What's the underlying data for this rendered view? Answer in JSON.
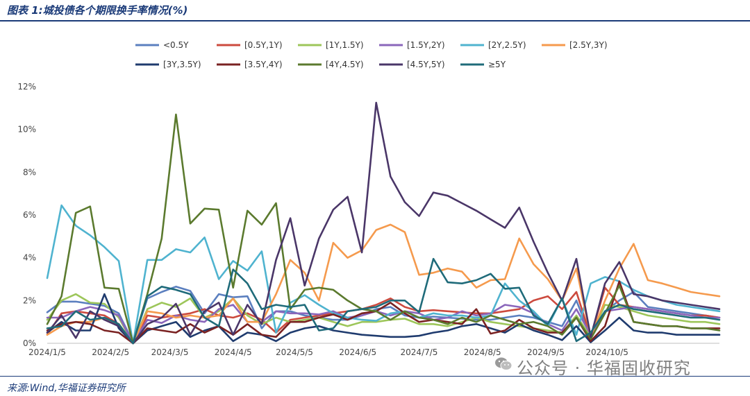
{
  "header": {
    "title": "图表 1:城投债各个期限换手率情况(%)"
  },
  "footer": {
    "source": "来源:Wind,华福证券研究所"
  },
  "watermark": {
    "text": "公众号 · 华福固收研究",
    "icon": "wechat-icon"
  },
  "chart_data": {
    "type": "line",
    "title": "",
    "xlabel": "",
    "ylabel": "",
    "ylim": [
      0,
      12
    ],
    "y_ticks": [
      0,
      2,
      4,
      6,
      8,
      10,
      12
    ],
    "y_tick_labels": [
      "0%",
      "2%",
      "4%",
      "6%",
      "8%",
      "10%",
      "12%"
    ],
    "x": [
      "2024-01-05",
      "2024-01-12",
      "2024-01-19",
      "2024-01-26",
      "2024-02-02",
      "2024-02-09",
      "2024-02-16",
      "2024-02-23",
      "2024-03-01",
      "2024-03-08",
      "2024-03-15",
      "2024-03-22",
      "2024-03-29",
      "2024-04-05",
      "2024-04-12",
      "2024-04-19",
      "2024-04-26",
      "2024-05-03",
      "2024-05-10",
      "2024-05-17",
      "2024-05-24",
      "2024-05-31",
      "2024-06-07",
      "2024-06-14",
      "2024-06-21",
      "2024-06-28",
      "2024-07-05",
      "2024-07-12",
      "2024-07-19",
      "2024-07-26",
      "2024-08-02",
      "2024-08-09",
      "2024-08-16",
      "2024-08-23",
      "2024-08-30",
      "2024-09-06",
      "2024-09-13",
      "2024-09-20",
      "2024-09-27",
      "2024-10-04",
      "2024-10-11",
      "2024-10-18",
      "2024-10-25",
      "2024-11-01",
      "2024-11-08",
      "2024-11-15",
      "2024-11-22",
      "2024-11-29"
    ],
    "x_tick_labels": [
      {
        "label": "2024/1/5",
        "date": "2024-01-05"
      },
      {
        "label": "2024/2/5",
        "date": "2024-02-05"
      },
      {
        "label": "2024/3/5",
        "date": "2024-03-05"
      },
      {
        "label": "2024/4/5",
        "date": "2024-04-05"
      },
      {
        "label": "2024/5/5",
        "date": "2024-05-05"
      },
      {
        "label": "2024/6/5",
        "date": "2024-06-05"
      },
      {
        "label": "2024/7/5",
        "date": "2024-07-05"
      },
      {
        "label": "2024/8/5",
        "date": "2024-08-05"
      },
      {
        "label": "2024/9/5",
        "date": "2024-09-05"
      },
      {
        "label": "2024/10/5",
        "date": "2024-10-05"
      }
    ],
    "legend_position": "top",
    "series": [
      {
        "name": "<0.5Y",
        "color": "#5b7fbf",
        "values": [
          1.45,
          1.95,
          1.95,
          1.85,
          1.75,
          1.4,
          0.05,
          2.1,
          2.4,
          2.65,
          2.45,
          1.4,
          2.3,
          2.15,
          2.2,
          0.7,
          1.5,
          1.5,
          1.3,
          1.2,
          1.1,
          1.1,
          1.3,
          1.6,
          1.7,
          1.3,
          1.2,
          1.25,
          1.2,
          1.15,
          1.1,
          1.1,
          1.2,
          1.3,
          1.2,
          1.0,
          0.8,
          2.0,
          0.3,
          1.5,
          2.0,
          2.4,
          1.7,
          1.6,
          1.5,
          1.4,
          1.3,
          1.2
        ]
      },
      {
        "name": "[0.5Y,1Y)",
        "color": "#cc4a3e",
        "values": [
          0.4,
          1.4,
          1.5,
          1.4,
          1.3,
          0.9,
          0.0,
          1.3,
          1.2,
          1.3,
          1.4,
          1.6,
          1.3,
          1.2,
          1.4,
          1.1,
          0.5,
          1.1,
          1.2,
          1.3,
          1.4,
          1.5,
          1.6,
          1.8,
          2.1,
          1.7,
          1.5,
          1.55,
          1.5,
          1.45,
          1.4,
          1.4,
          1.5,
          1.6,
          2.0,
          2.2,
          1.6,
          2.4,
          0.3,
          2.6,
          1.8,
          1.7,
          1.6,
          1.5,
          1.4,
          1.3,
          1.3,
          1.2
        ]
      },
      {
        "name": "[1Y,1.5Y)",
        "color": "#9dc65a",
        "values": [
          1.1,
          2.0,
          2.3,
          1.9,
          1.85,
          1.2,
          0.0,
          1.6,
          1.9,
          1.7,
          2.1,
          1.2,
          1.5,
          2.1,
          1.3,
          0.9,
          1.2,
          1.0,
          1.1,
          1.2,
          1.0,
          0.8,
          1.0,
          1.0,
          1.1,
          1.15,
          0.9,
          0.9,
          0.8,
          1.0,
          1.2,
          1.0,
          0.9,
          0.8,
          0.7,
          0.6,
          0.5,
          1.3,
          0.3,
          1.8,
          1.7,
          1.5,
          1.3,
          1.2,
          1.1,
          1.0,
          1.0,
          0.9
        ]
      },
      {
        "name": "[1.5Y,2Y)",
        "color": "#8a66bb",
        "values": [
          1.2,
          1.2,
          1.5,
          1.7,
          1.55,
          1.3,
          0.0,
          1.1,
          0.95,
          1.3,
          1.1,
          1.0,
          1.6,
          1.8,
          1.0,
          1.0,
          1.5,
          1.4,
          1.4,
          1.35,
          1.5,
          1.2,
          1.3,
          1.5,
          1.3,
          1.5,
          1.4,
          1.1,
          1.2,
          1.5,
          1.3,
          1.4,
          1.8,
          1.7,
          1.4,
          0.9,
          0.6,
          1.6,
          0.4,
          1.5,
          1.6,
          1.7,
          1.6,
          1.5,
          1.4,
          1.3,
          1.2,
          1.2
        ]
      },
      {
        "name": "[2Y,2.5Y)",
        "color": "#4fb3cf",
        "values": [
          3.05,
          6.45,
          5.5,
          5.05,
          4.5,
          3.85,
          0.0,
          3.9,
          3.9,
          4.4,
          4.25,
          4.95,
          3.0,
          3.85,
          3.4,
          4.3,
          0.5,
          1.9,
          2.25,
          1.8,
          1.4,
          1.2,
          1.1,
          1.05,
          1.4,
          1.5,
          1.2,
          1.4,
          1.3,
          1.3,
          1.2,
          1.3,
          2.8,
          2.0,
          1.5,
          0.8,
          2.1,
          0.4,
          2.8,
          3.1,
          2.9,
          2.5,
          2.2,
          2.0,
          1.8,
          1.7,
          1.6,
          1.5
        ]
      },
      {
        "name": "[2.5Y,3Y)",
        "color": "#f59a4d",
        "values": [
          0.4,
          0.8,
          1.0,
          1.0,
          1.2,
          0.8,
          0.0,
          1.5,
          1.4,
          1.2,
          1.3,
          1.2,
          1.3,
          2.1,
          1.0,
          1.0,
          2.3,
          3.9,
          3.3,
          2.0,
          4.7,
          4.0,
          4.35,
          5.3,
          5.55,
          5.2,
          3.2,
          3.3,
          3.5,
          3.35,
          2.6,
          2.95,
          3.0,
          4.9,
          3.7,
          3.0,
          2.0,
          3.5,
          0.3,
          2.0,
          3.5,
          4.65,
          2.95,
          2.8,
          2.6,
          2.4,
          2.3,
          2.2
        ]
      },
      {
        "name": "[3Y,3.5Y)",
        "color": "#1f3b6e",
        "values": [
          0.5,
          1.0,
          0.6,
          0.6,
          2.3,
          0.7,
          0.0,
          0.6,
          0.8,
          1.0,
          0.3,
          0.6,
          0.8,
          0.1,
          0.5,
          0.4,
          0.1,
          0.5,
          0.7,
          0.8,
          0.6,
          0.5,
          0.4,
          0.35,
          0.3,
          0.3,
          0.35,
          0.5,
          0.6,
          0.8,
          0.9,
          0.7,
          0.5,
          0.9,
          0.6,
          0.4,
          0.15,
          0.8,
          0.05,
          0.6,
          1.2,
          0.6,
          0.5,
          0.5,
          0.4,
          0.4,
          0.4,
          0.4
        ]
      },
      {
        "name": "[3.5Y,4Y)",
        "color": "#7a2222",
        "values": [
          0.6,
          0.9,
          1.0,
          0.9,
          0.6,
          0.5,
          0.0,
          0.7,
          0.6,
          0.5,
          0.9,
          0.5,
          0.8,
          0.4,
          0.9,
          0.4,
          0.3,
          1.0,
          1.0,
          1.2,
          1.35,
          1.1,
          1.4,
          1.5,
          1.9,
          1.4,
          1.0,
          1.1,
          1.0,
          0.9,
          1.6,
          0.45,
          0.6,
          1.1,
          0.7,
          0.5,
          0.5,
          1.2,
          0.1,
          0.8,
          2.9,
          1.0,
          0.9,
          0.8,
          0.8,
          0.7,
          0.7,
          0.7
        ]
      },
      {
        "name": "[4Y,4.5Y)",
        "color": "#5b7a2e",
        "values": [
          0.9,
          2.2,
          6.1,
          6.4,
          2.6,
          2.55,
          0.0,
          2.3,
          4.9,
          10.7,
          5.6,
          6.3,
          6.25,
          2.6,
          6.2,
          5.55,
          6.55,
          1.6,
          2.5,
          2.6,
          2.5,
          2.0,
          1.6,
          1.5,
          1.1,
          1.5,
          1.2,
          1.1,
          0.9,
          1.2,
          1.0,
          1.3,
          1.1,
          0.9,
          1.0,
          0.8,
          0.4,
          1.2,
          0.2,
          1.4,
          2.7,
          1.0,
          0.9,
          0.8,
          0.8,
          0.7,
          0.7,
          0.6
        ]
      },
      {
        "name": "[4.5Y,5Y)",
        "color": "#4a3668",
        "values": [
          0.5,
          1.3,
          0.25,
          1.5,
          1.1,
          0.8,
          0.0,
          0.9,
          1.2,
          1.85,
          0.4,
          1.5,
          1.9,
          0.4,
          1.8,
          0.9,
          3.9,
          5.85,
          2.7,
          4.9,
          6.25,
          6.85,
          4.25,
          11.25,
          7.8,
          6.6,
          5.95,
          7.05,
          6.9,
          6.55,
          6.2,
          5.8,
          5.4,
          6.35,
          4.75,
          3.3,
          2.0,
          3.95,
          0.3,
          2.8,
          3.8,
          2.3,
          2.2,
          2.0,
          1.9,
          1.8,
          1.7,
          1.6
        ]
      },
      {
        "name": "≥5Y",
        "color": "#1f6b7a",
        "values": [
          0.7,
          0.8,
          1.5,
          1.1,
          1.2,
          0.9,
          0.0,
          2.2,
          2.65,
          2.5,
          2.3,
          1.2,
          0.8,
          3.45,
          2.8,
          1.6,
          1.8,
          1.7,
          1.8,
          0.6,
          0.7,
          1.5,
          1.6,
          1.7,
          2.0,
          2.0,
          1.45,
          3.95,
          2.85,
          2.8,
          2.95,
          3.25,
          2.55,
          2.6,
          1.3,
          0.9,
          2.1,
          0.1,
          0.5,
          1.5,
          1.8,
          1.6,
          1.5,
          1.4,
          1.3,
          1.2,
          1.2,
          1.1
        ]
      }
    ]
  }
}
